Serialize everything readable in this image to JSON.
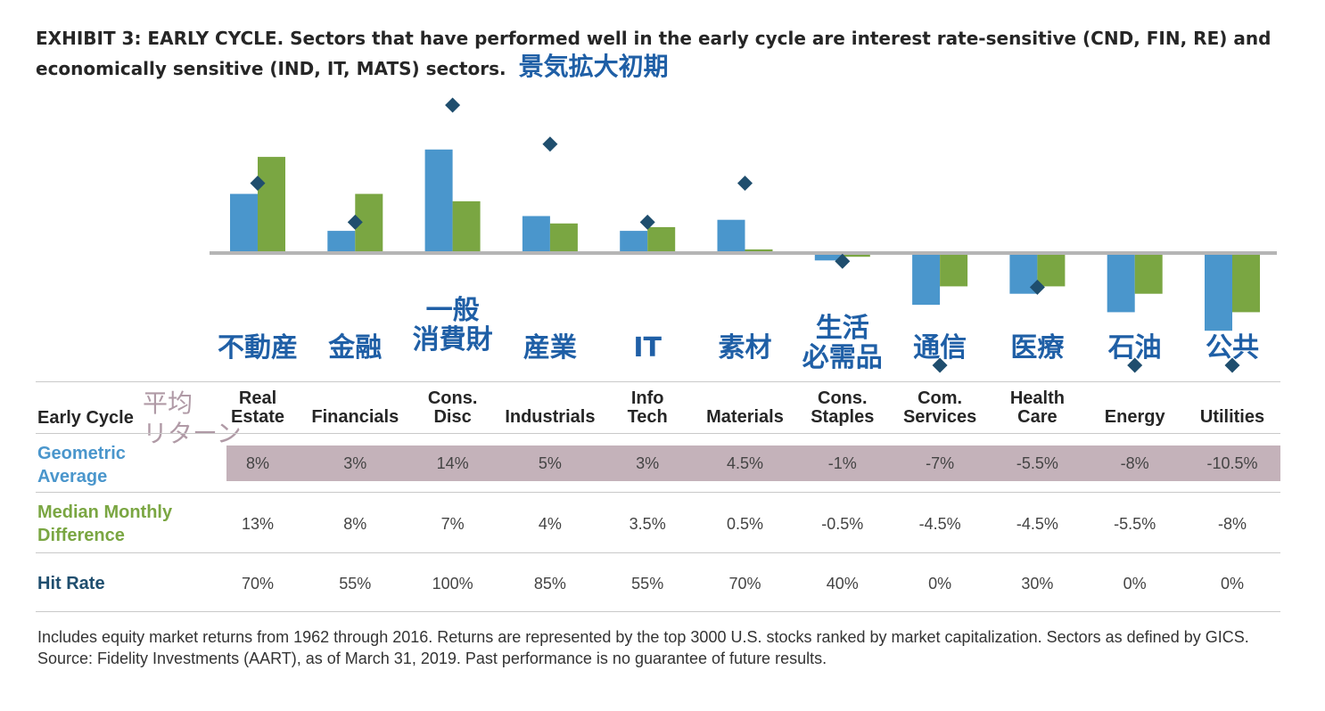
{
  "title": {
    "text": "EXHIBIT 3: EARLY CYCLE. Sectors that have performed well in the early cycle are interest rate-sensitive (CND, FIN, RE) and economically sensitive (IND, IT, MATS) sectors.",
    "jp_note": "景気拡大初期"
  },
  "colors": {
    "geometric": "#4a96cc",
    "median": "#7aa642",
    "hit_marker": "#1f4e6e",
    "jp_text": "#1f5fa6",
    "band": "#c4b2ba"
  },
  "side_note": {
    "line1": "平均",
    "line2": "リターン"
  },
  "table": {
    "early_cycle_label": "Early Cycle",
    "row_labels": {
      "geometric": [
        "Geometric",
        "Average"
      ],
      "median": [
        "Median Monthly",
        "Difference"
      ],
      "hit": [
        "Hit Rate"
      ]
    },
    "columns": [
      {
        "jp": [
          "不動産"
        ],
        "header": [
          "Real",
          "Estate"
        ],
        "geometric": "8%",
        "median": "13%",
        "hit": "70%"
      },
      {
        "jp": [
          "金融"
        ],
        "header": [
          "Financials"
        ],
        "geometric": "3%",
        "median": "8%",
        "hit": "55%"
      },
      {
        "jp": [
          "一般",
          "消費財"
        ],
        "header": [
          "Cons.",
          "Disc"
        ],
        "geometric": "14%",
        "median": "7%",
        "hit": "100%"
      },
      {
        "jp": [
          "産業"
        ],
        "header": [
          "Industrials"
        ],
        "geometric": "5%",
        "median": "4%",
        "hit": "85%"
      },
      {
        "jp": [
          "IT"
        ],
        "header": [
          "Info",
          "Tech"
        ],
        "geometric": "3%",
        "median": "3.5%",
        "hit": "55%"
      },
      {
        "jp": [
          "素材"
        ],
        "header": [
          "Materials"
        ],
        "geometric": "4.5%",
        "median": "0.5%",
        "hit": "70%"
      },
      {
        "jp": [
          "生活",
          "必需品"
        ],
        "header": [
          "Cons.",
          "Staples"
        ],
        "geometric": "-1%",
        "median": "-0.5%",
        "hit": "40%"
      },
      {
        "jp": [
          "通信"
        ],
        "header": [
          "Com.",
          "Services"
        ],
        "geometric": "-7%",
        "median": "-4.5%",
        "hit": "0%"
      },
      {
        "jp": [
          "医療"
        ],
        "header": [
          "Health",
          "Care"
        ],
        "geometric": "-5.5%",
        "median": "-4.5%",
        "hit": "30%"
      },
      {
        "jp": [
          "石油"
        ],
        "header": [
          "Energy"
        ],
        "geometric": "-8%",
        "median": "-5.5%",
        "hit": "0%"
      },
      {
        "jp": [
          "公共"
        ],
        "header": [
          "Utilities"
        ],
        "geometric": "-10.5%",
        "median": "-8%",
        "hit": "0%"
      }
    ]
  },
  "chart_data": {
    "type": "bar",
    "categories": [
      "Real Estate",
      "Financials",
      "Cons. Disc",
      "Industrials",
      "Info Tech",
      "Materials",
      "Cons. Staples",
      "Com. Services",
      "Health Care",
      "Energy",
      "Utilities"
    ],
    "series": [
      {
        "name": "Geometric Average",
        "values": [
          8,
          3,
          14,
          5,
          3,
          4.5,
          -1,
          -7,
          -5.5,
          -8,
          -10.5
        ]
      },
      {
        "name": "Median Monthly Difference",
        "values": [
          13,
          8,
          7,
          4,
          3.5,
          0.5,
          -0.5,
          -4.5,
          -4.5,
          -5.5,
          -8
        ]
      },
      {
        "name": "Hit Rate",
        "values": [
          70,
          55,
          100,
          85,
          55,
          70,
          40,
          0,
          30,
          0,
          0
        ]
      }
    ]
  },
  "footnote": "Includes equity market returns from 1962 through 2016. Returns are represented by the top 3000 U.S. stocks ranked by market capitalization. Sectors as defined by GICS. Source: Fidelity Investments (AART), as of March 31, 2019. Past performance is no guarantee of future results."
}
